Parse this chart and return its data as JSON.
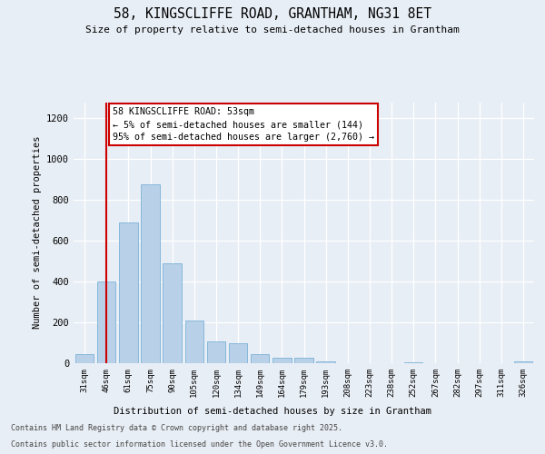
{
  "title": "58, KINGSCLIFFE ROAD, GRANTHAM, NG31 8ET",
  "subtitle": "Size of property relative to semi-detached houses in Grantham",
  "xlabel": "Distribution of semi-detached houses by size in Grantham",
  "ylabel": "Number of semi-detached properties",
  "categories": [
    "31sqm",
    "46sqm",
    "61sqm",
    "75sqm",
    "90sqm",
    "105sqm",
    "120sqm",
    "134sqm",
    "149sqm",
    "164sqm",
    "179sqm",
    "193sqm",
    "208sqm",
    "223sqm",
    "238sqm",
    "252sqm",
    "267sqm",
    "282sqm",
    "297sqm",
    "311sqm",
    "326sqm"
  ],
  "values": [
    45,
    400,
    690,
    875,
    490,
    210,
    105,
    100,
    45,
    28,
    25,
    8,
    2,
    2,
    2,
    5,
    2,
    1,
    1,
    0,
    8
  ],
  "bar_color": "#b8d0e8",
  "bar_edge_color": "#6aaad4",
  "vline_color": "#cc0000",
  "vline_x_index": 1.0,
  "annotation_text": "58 KINGSCLIFFE ROAD: 53sqm\n← 5% of semi-detached houses are smaller (144)\n95% of semi-detached houses are larger (2,760) →",
  "annotation_box_facecolor": "#ffffff",
  "annotation_box_edgecolor": "#cc0000",
  "ylim": [
    0,
    1280
  ],
  "yticks": [
    0,
    200,
    400,
    600,
    800,
    1000,
    1200
  ],
  "bg_color": "#e8eef5",
  "footer_line1": "Contains HM Land Registry data © Crown copyright and database right 2025.",
  "footer_line2": "Contains public sector information licensed under the Open Government Licence v3.0."
}
